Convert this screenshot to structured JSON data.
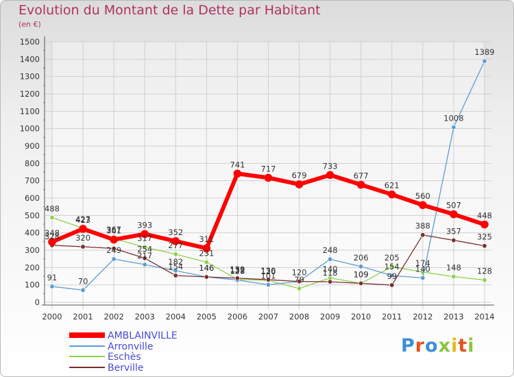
{
  "chart_data": {
    "type": "line",
    "title": "Evolution du Montant de la Dette par Habitant",
    "subtitle": "(en €)",
    "x": [
      2000,
      2001,
      2002,
      2003,
      2004,
      2005,
      2006,
      2007,
      2008,
      2009,
      2010,
      2011,
      2012,
      2013,
      2014
    ],
    "ylim": [
      0,
      1500
    ],
    "yticks": [
      0,
      100,
      200,
      300,
      400,
      500,
      600,
      700,
      800,
      900,
      1000,
      1100,
      1200,
      1300,
      1400,
      1500
    ],
    "grid": true,
    "legend_position": "bottom-left",
    "series": [
      {
        "name": "Eschès",
        "color": "#8ed14a",
        "width": 1.3,
        "values": [
          488,
          427,
          367,
          317,
          277,
          231,
          132,
          126,
          79,
          140,
          109,
          205,
          174,
          148,
          128
        ]
      },
      {
        "name": "Arronville",
        "color": "#5b9bd5",
        "width": 1.3,
        "values": [
          91,
          70,
          249,
          217,
          182,
          146,
          128,
          101,
          120,
          248,
          206,
          154,
          140,
          1008,
          1389
        ]
      },
      {
        "name": "Berville",
        "color": "#7b2d2d",
        "width": 1.3,
        "values": [
          328,
          320,
          310,
          254,
          154,
          146,
          139,
          130,
          120,
          118,
          109,
          99,
          388,
          357,
          325
        ]
      },
      {
        "name": "AMBLAINVILLE",
        "color": "#ff0000",
        "width": 6,
        "values": [
          348,
          423,
          361,
          393,
          352,
          311,
          741,
          717,
          679,
          733,
          677,
          621,
          560,
          507,
          448
        ]
      }
    ],
    "legend": [
      "AMBLAINVILLE",
      "Arronville",
      "Eschès",
      "Berville"
    ],
    "labels": {
      "AMBLAINVILLE": [
        "348",
        "423",
        "361",
        "393",
        "352",
        "311",
        "741",
        "717",
        "679",
        "733",
        "677",
        "621",
        "560",
        "507",
        "448"
      ],
      "Arronville": [
        "91",
        "70",
        "249",
        "217",
        "182",
        "146",
        "128",
        "101",
        "120",
        "248",
        "206",
        "154",
        "140",
        "1008",
        "1389"
      ],
      "Eschès": [
        "488",
        "427",
        "367",
        "317",
        "277",
        "231",
        "132",
        "126",
        "79",
        "140",
        "109",
        "205",
        "174",
        "148",
        "128"
      ],
      "Berville": [
        "328",
        "320",
        "",
        "254",
        "154",
        "146",
        "139",
        "130",
        "",
        "118",
        "109",
        "99",
        "388",
        "357",
        "325"
      ]
    }
  },
  "brand": {
    "logo": "Proxiti",
    "colors": [
      "#3b8fd8",
      "#e8541c",
      "#3b8fd8",
      "#8ac43f",
      "#e8b81c",
      "#e8541c",
      "#8ac43f"
    ]
  }
}
